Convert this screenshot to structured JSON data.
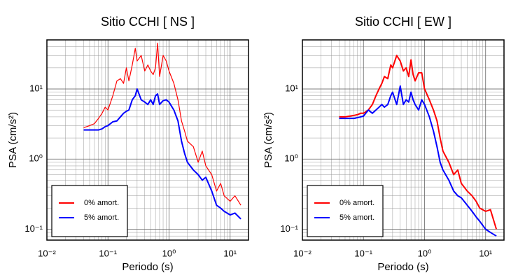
{
  "chart_data": [
    {
      "type": "line",
      "title": "Sitio CCHI [ NS ]",
      "xlabel": "Periodo (s)",
      "ylabel": "PSA (cm/s²)",
      "log_x": true,
      "log_y": true,
      "grid": true,
      "legend": "lower left",
      "xlim": [
        0.01,
        20
      ],
      "ylim": [
        0.07,
        50
      ],
      "xticks": [
        {
          "value": 0.01,
          "label": "10⁻²"
        },
        {
          "value": 0.1,
          "label": "10⁻¹"
        },
        {
          "value": 1,
          "label": "10⁰"
        },
        {
          "value": 10,
          "label": "10¹"
        }
      ],
      "yticks": [
        {
          "value": 0.1,
          "label": "10⁻¹"
        },
        {
          "value": 1,
          "label": "10⁰"
        },
        {
          "value": 10,
          "label": "10¹"
        }
      ],
      "x": [
        0.04,
        0.05,
        0.06,
        0.07,
        0.08,
        0.09,
        0.1,
        0.12,
        0.14,
        0.16,
        0.18,
        0.2,
        0.22,
        0.25,
        0.28,
        0.3,
        0.35,
        0.4,
        0.45,
        0.5,
        0.55,
        0.6,
        0.65,
        0.7,
        0.8,
        0.9,
        1,
        1.2,
        1.4,
        1.6,
        1.8,
        2,
        2.5,
        3,
        3.5,
        4,
        5,
        6,
        7,
        8,
        10,
        12,
        15
      ],
      "series": [
        {
          "name": "0% amort.",
          "color": "#ff0000",
          "width": 1.2,
          "values": [
            2.8,
            3.0,
            3.2,
            3.8,
            4.5,
            5.5,
            5.0,
            8,
            13,
            14,
            12,
            20,
            13,
            22,
            38,
            25,
            30,
            18,
            22,
            18,
            16,
            20,
            45,
            15,
            30,
            25,
            18,
            12,
            7,
            3.5,
            2.5,
            1.8,
            1.5,
            0.9,
            1.3,
            0.8,
            0.6,
            0.35,
            0.45,
            0.3,
            0.25,
            0.3,
            0.22
          ]
        },
        {
          "name": "5% amort.",
          "color": "#0000ff",
          "width": 2,
          "values": [
            2.6,
            2.6,
            2.6,
            2.6,
            2.7,
            2.9,
            3.0,
            3.4,
            3.5,
            4,
            4.5,
            4.8,
            5,
            7,
            8,
            10,
            7,
            6.5,
            6,
            7,
            6,
            8,
            8.5,
            6,
            6.8,
            7,
            6.5,
            5,
            3.5,
            1.8,
            1.2,
            0.9,
            0.7,
            0.6,
            0.5,
            0.55,
            0.35,
            0.22,
            0.2,
            0.18,
            0.16,
            0.17,
            0.14
          ]
        }
      ]
    },
    {
      "type": "line",
      "title": "Sitio CCHI [ EW ]",
      "xlabel": "Periodo (s)",
      "ylabel": "PSA (cm/s²)",
      "log_x": true,
      "log_y": true,
      "grid": true,
      "legend": "lower left",
      "xlim": [
        0.01,
        20
      ],
      "ylim": [
        0.07,
        50
      ],
      "xticks": [
        {
          "value": 0.01,
          "label": "10⁻²"
        },
        {
          "value": 0.1,
          "label": "10⁻¹"
        },
        {
          "value": 1,
          "label": "10⁰"
        },
        {
          "value": 10,
          "label": "10¹"
        }
      ],
      "yticks": [
        {
          "value": 0.1,
          "label": "10⁻¹"
        },
        {
          "value": 1,
          "label": "10⁰"
        },
        {
          "value": 10,
          "label": "10¹"
        }
      ],
      "x": [
        0.04,
        0.05,
        0.06,
        0.07,
        0.08,
        0.09,
        0.1,
        0.12,
        0.14,
        0.16,
        0.18,
        0.2,
        0.22,
        0.25,
        0.28,
        0.3,
        0.35,
        0.4,
        0.45,
        0.5,
        0.55,
        0.6,
        0.65,
        0.7,
        0.8,
        0.9,
        1,
        1.2,
        1.4,
        1.6,
        1.8,
        2,
        2.5,
        3,
        3.5,
        4,
        5,
        6,
        7,
        8,
        10,
        12,
        15
      ],
      "series": [
        {
          "name": "0% amort.",
          "color": "#ff0000",
          "width": 2,
          "values": [
            4,
            4,
            4.1,
            4.2,
            4.3,
            4.5,
            4.5,
            5,
            6,
            8,
            10,
            12,
            15,
            14,
            22,
            20,
            30,
            25,
            18,
            20,
            15,
            26,
            16,
            13,
            17,
            17,
            10,
            7,
            5,
            3.5,
            2,
            1.3,
            0.9,
            0.6,
            0.7,
            0.45,
            0.35,
            0.3,
            0.25,
            0.2,
            0.18,
            0.19,
            0.1
          ]
        },
        {
          "name": "5% amort.",
          "color": "#0000ff",
          "width": 2,
          "values": [
            3.8,
            3.8,
            3.8,
            3.8,
            3.9,
            4,
            4.1,
            5,
            4.5,
            5,
            5.5,
            6,
            5.5,
            6,
            8,
            9,
            6,
            11,
            6,
            7,
            6.5,
            9,
            7,
            6,
            5,
            7,
            6,
            4,
            2.5,
            1.5,
            0.9,
            0.7,
            0.5,
            0.35,
            0.3,
            0.28,
            0.22,
            0.18,
            0.15,
            0.13,
            0.1,
            0.09,
            0.08
          ]
        }
      ]
    }
  ]
}
